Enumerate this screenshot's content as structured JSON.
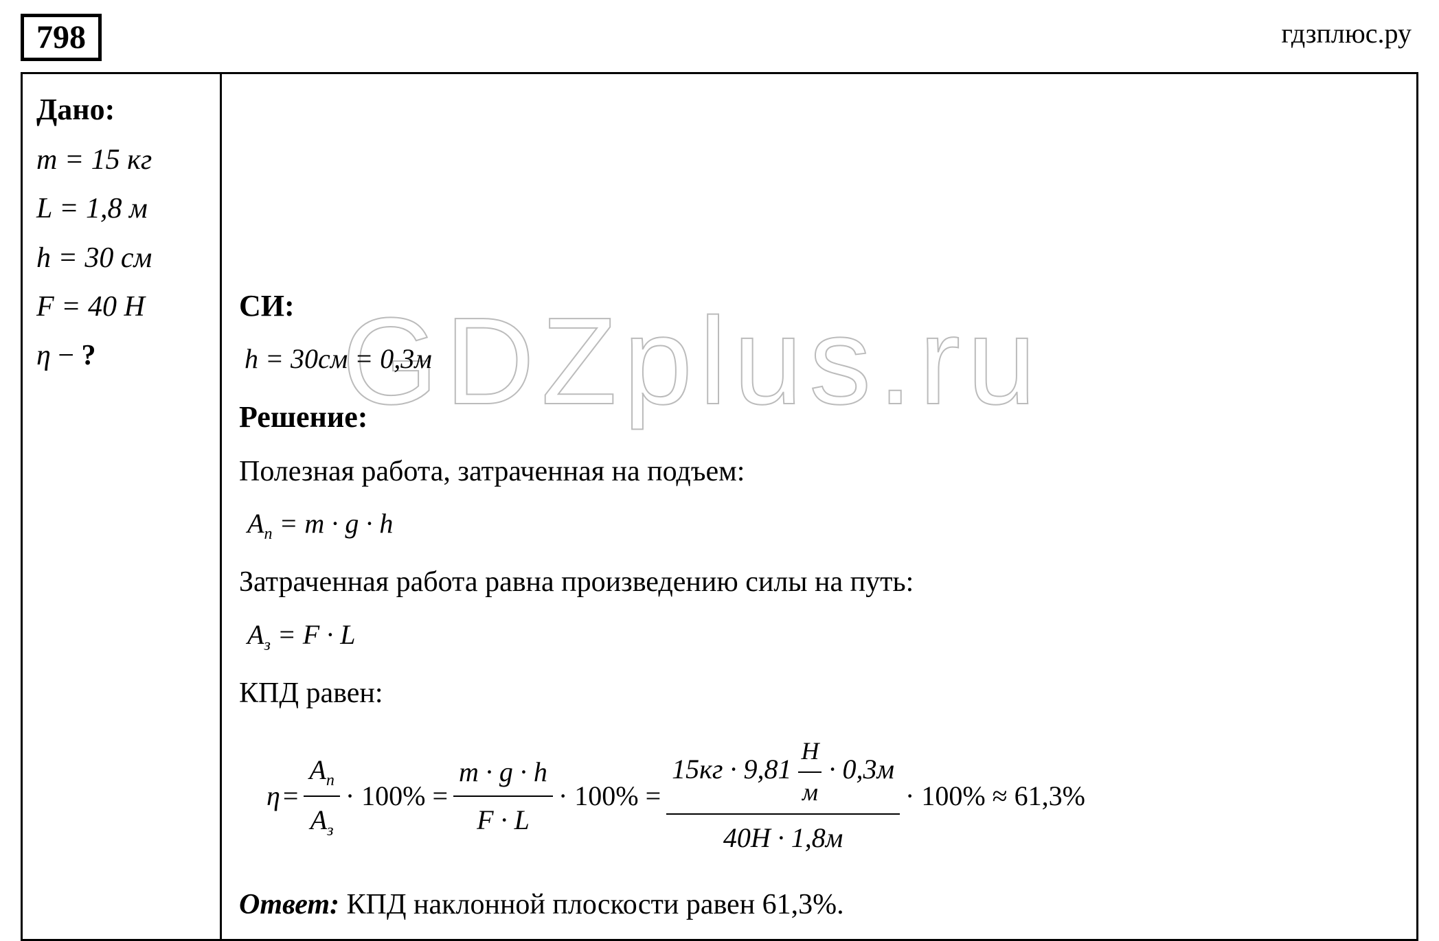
{
  "problem_number": "798",
  "site_name": "гдзплюс.ру",
  "watermark_text": "GDZplus.ru",
  "given": {
    "heading": "Дано:",
    "lines": {
      "m": "m = 15 кг",
      "L": "L = 1,8 м",
      "h": "h = 30 см",
      "F": "F = 40 Н",
      "eta": "η − ?"
    }
  },
  "si": {
    "heading": "СИ:",
    "conversion": "h = 30см = 0,3м"
  },
  "solution": {
    "heading": "Решение:",
    "useful_work_text": "Полезная работа, затраченная на подъем:",
    "useful_work_formula": "Aп = m · g · h",
    "spent_work_text": "Затраченная работа равна произведению силы на путь:",
    "spent_work_formula": "Aз = F · L",
    "kpd_text": "КПД равен:",
    "eta_symbol": "η",
    "eq": " = ",
    "frac1_num": "Aп",
    "frac1_den": "Aз",
    "times100": " · 100% = ",
    "frac2_num": "m · g · h",
    "frac2_den": "F · L",
    "frac3_num_p1": "15кг · 9,81",
    "frac3_num_unit_n": "Н",
    "frac3_num_unit_d": "м",
    "frac3_num_p2": " · 0,3м",
    "frac3_den": "40Н · 1,8м",
    "result_tail": " · 100% ≈ 61,3%"
  },
  "answer": {
    "label": "Ответ:",
    "text": " КПД наклонной плоскости равен 61,3%."
  }
}
